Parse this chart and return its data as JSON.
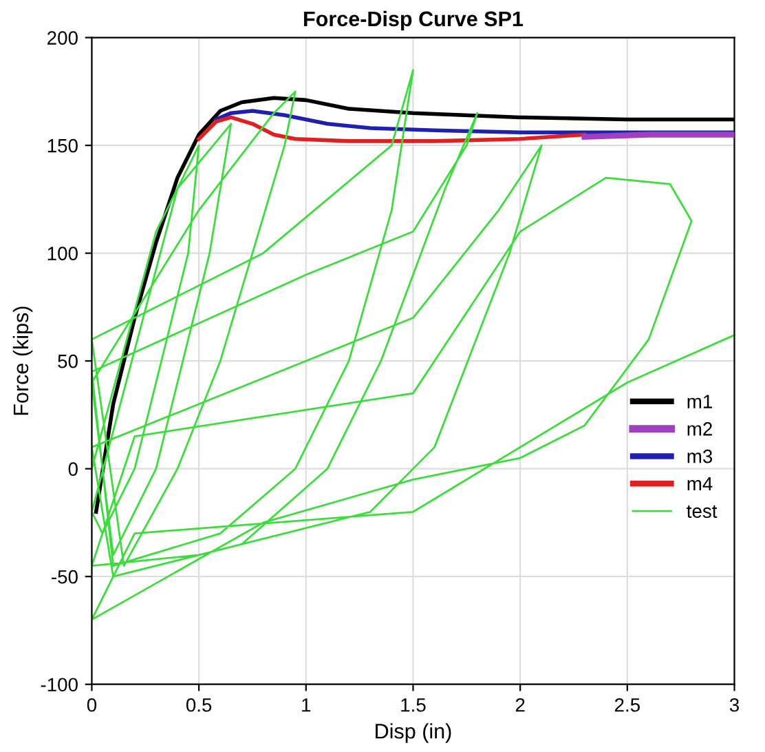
{
  "chart_data": {
    "type": "line",
    "title": "Force-Disp Curve SP1",
    "xlabel": "Disp (in)",
    "ylabel": "Force (kips)",
    "xlim": [
      0,
      3
    ],
    "ylim": [
      -100,
      200
    ],
    "xticks": [
      0,
      0.5,
      1,
      1.5,
      2,
      2.5,
      3
    ],
    "yticks": [
      -100,
      -50,
      0,
      50,
      100,
      150,
      200
    ],
    "grid": true,
    "legend": "right",
    "marker": "none",
    "line_style": "solid",
    "series": [
      {
        "name": "m1",
        "color": "#000000",
        "x": [
          0.02,
          0.1,
          0.2,
          0.3,
          0.4,
          0.5,
          0.6,
          0.7,
          0.85,
          1.0,
          1.2,
          1.5,
          2.0,
          2.5,
          3.0
        ],
        "values": [
          -20,
          30,
          70,
          105,
          135,
          155,
          166,
          170,
          172,
          171,
          167,
          165,
          163,
          162,
          162
        ]
      },
      {
        "name": "m2",
        "color": "#a040c0",
        "x": [
          2.3,
          2.6,
          3.0
        ],
        "values": [
          154,
          155,
          155
        ]
      },
      {
        "name": "m3",
        "color": "#2020b0",
        "x": [
          0.58,
          0.65,
          0.75,
          0.9,
          1.1,
          1.3,
          1.6,
          2.0,
          2.5,
          3.0
        ],
        "values": [
          162,
          165,
          166,
          164,
          160,
          158,
          157,
          156,
          156,
          156
        ]
      },
      {
        "name": "m4",
        "color": "#e02020",
        "x": [
          0.5,
          0.58,
          0.65,
          0.75,
          0.85,
          0.95,
          1.2,
          1.6,
          2.0,
          2.3
        ],
        "values": [
          153,
          161,
          163,
          160,
          155,
          153,
          152,
          152,
          153,
          155
        ]
      },
      {
        "name": "test",
        "color": "#3ddc3d",
        "x": [
          0,
          0.3,
          0.5,
          0.45,
          0.2,
          0.05,
          0,
          0.4,
          0.65,
          0.55,
          0.3,
          0.1,
          0,
          0.5,
          0.85,
          0.95,
          0.9,
          0.6,
          0.4,
          0.15,
          0,
          0.8,
          1.4,
          1.5,
          1.4,
          1.2,
          0.95,
          0.6,
          0.1,
          0,
          1.0,
          1.5,
          1.75,
          1.8,
          1.65,
          1.35,
          1.1,
          0.7,
          0.1,
          0,
          0.5,
          1.5,
          1.9,
          2.1,
          1.95,
          1.6,
          1.3,
          0.5,
          0,
          0.2,
          1.5,
          2.0,
          2.4,
          2.7,
          2.8,
          2.6,
          2.3,
          2.0,
          1.5,
          0.8,
          0,
          0.2,
          1.5,
          2.5,
          3.0
        ],
        "values": [
          0,
          110,
          150,
          100,
          0,
          -30,
          -20,
          130,
          160,
          100,
          0,
          -40,
          40,
          120,
          165,
          175,
          150,
          50,
          0,
          -45,
          60,
          100,
          150,
          185,
          120,
          50,
          0,
          -30,
          -45,
          45,
          90,
          110,
          150,
          165,
          130,
          50,
          0,
          -35,
          -50,
          10,
          30,
          70,
          120,
          150,
          100,
          10,
          -20,
          -40,
          -45,
          15,
          35,
          110,
          135,
          132,
          115,
          60,
          20,
          5,
          -5,
          -25,
          -70,
          -30,
          -20,
          40,
          62
        ]
      }
    ]
  }
}
